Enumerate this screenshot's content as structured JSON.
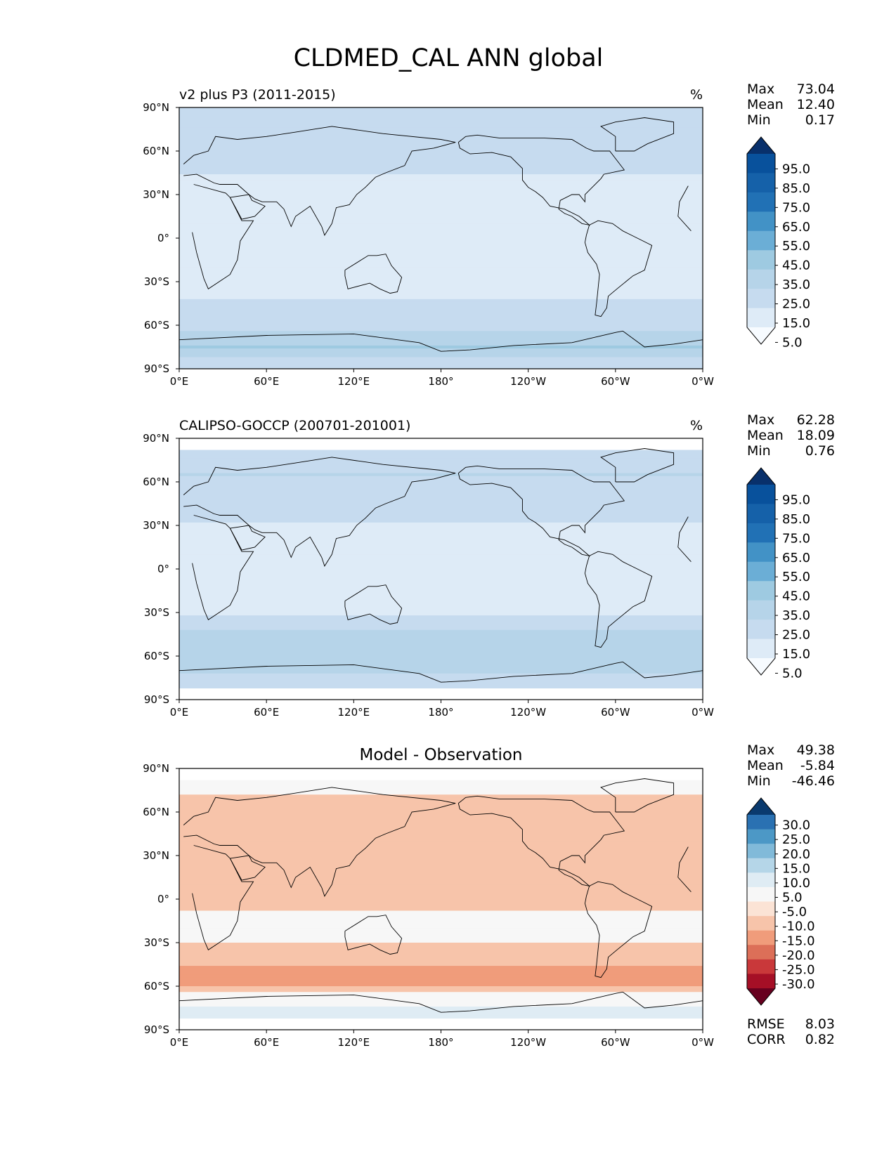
{
  "figure_title": "CLDMED_CAL ANN global",
  "colors": {
    "blues": [
      "#f7fbff",
      "#deebf7",
      "#c6dbef",
      "#b6d4e9",
      "#9ecae1",
      "#6baed6",
      "#4292c6",
      "#2171b5",
      "#1561a9",
      "#08519c",
      "#08306b"
    ],
    "diff": [
      "#67001f",
      "#a50f26",
      "#c9383a",
      "#dc6f58",
      "#f09c7b",
      "#f7c4aa",
      "#fbe3d5",
      "#f7f7f7",
      "#dfecf4",
      "#b5d6e8",
      "#81bad9",
      "#4c98c6",
      "#2a71b2",
      "#0a3a6e"
    ],
    "land_outline": "#000000"
  },
  "panels": [
    {
      "id": "model",
      "left_title": "v2 plus P3 (2011-2015)",
      "center_title": "",
      "right_title": "%",
      "stats": [
        {
          "label": "Max",
          "value": "73.04"
        },
        {
          "label": "Mean",
          "value": "12.40"
        },
        {
          "label": "Min",
          "value": "0.17"
        }
      ],
      "colorbar_labels": [
        "95.0",
        "85.0",
        "75.0",
        "65.0",
        "55.0",
        "45.0",
        "35.0",
        "25.0",
        "15.0",
        "5.0"
      ],
      "footer_stats": []
    },
    {
      "id": "obs",
      "left_title": "CALIPSO-GOCCP (200701-201001)",
      "center_title": "",
      "right_title": "%",
      "stats": [
        {
          "label": "Max",
          "value": "62.28"
        },
        {
          "label": "Mean",
          "value": "18.09"
        },
        {
          "label": "Min",
          "value": "0.76"
        }
      ],
      "colorbar_labels": [
        "95.0",
        "85.0",
        "75.0",
        "65.0",
        "55.0",
        "45.0",
        "35.0",
        "25.0",
        "15.0",
        "5.0"
      ],
      "footer_stats": []
    },
    {
      "id": "diff",
      "left_title": "",
      "center_title": "Model - Observation",
      "right_title": "",
      "stats": [
        {
          "label": "Max",
          "value": "49.38"
        },
        {
          "label": "Mean",
          "value": "-5.84"
        },
        {
          "label": "Min",
          "value": "-46.46"
        }
      ],
      "colorbar_labels": [
        "30.0",
        "25.0",
        "20.0",
        "15.0",
        "10.0",
        "5.0",
        "-5.0",
        "-10.0",
        "-15.0",
        "-20.0",
        "-25.0",
        "-30.0"
      ],
      "footer_stats": [
        {
          "label": "RMSE",
          "value": "8.03"
        },
        {
          "label": "CORR",
          "value": "0.82"
        }
      ]
    }
  ],
  "chart_data": [
    {
      "type": "heatmap",
      "title": "v2 plus P3 (2011-2015)",
      "units": "%",
      "x_ticks": [
        "0°E",
        "60°E",
        "120°E",
        "180°",
        "120°W",
        "60°W",
        "0°W"
      ],
      "y_ticks": [
        "90°N",
        "60°N",
        "30°N",
        "0°",
        "30°S",
        "60°S",
        "90°S"
      ],
      "xlim": [
        0,
        360
      ],
      "ylim": [
        -90,
        90
      ],
      "levels": [
        5,
        15,
        25,
        35,
        45,
        55,
        65,
        75,
        85,
        95
      ],
      "max": 73.04,
      "mean": 12.4,
      "min": 0.17,
      "colormap": "Blues",
      "zonal_mean_profile": [
        {
          "lat": 85,
          "value": 20
        },
        {
          "lat": 65,
          "value": 20
        },
        {
          "lat": 45,
          "value": 15
        },
        {
          "lat": 30,
          "value": 9
        },
        {
          "lat": 10,
          "value": 8
        },
        {
          "lat": 0,
          "value": 6
        },
        {
          "lat": -15,
          "value": 5
        },
        {
          "lat": -30,
          "value": 9
        },
        {
          "lat": -45,
          "value": 17
        },
        {
          "lat": -60,
          "value": 20
        },
        {
          "lat": -75,
          "value": 35
        },
        {
          "lat": -85,
          "value": 20
        }
      ]
    },
    {
      "type": "heatmap",
      "title": "CALIPSO-GOCCP (200701-201001)",
      "units": "%",
      "x_ticks": [
        "0°E",
        "60°E",
        "120°E",
        "180°",
        "120°W",
        "60°W",
        "0°W"
      ],
      "y_ticks": [
        "90°N",
        "60°N",
        "30°N",
        "0°",
        "30°S",
        "60°S",
        "90°S"
      ],
      "xlim": [
        0,
        360
      ],
      "ylim": [
        -90,
        90
      ],
      "data_lat_range": [
        -82,
        82
      ],
      "levels": [
        5,
        15,
        25,
        35,
        45,
        55,
        65,
        75,
        85,
        95
      ],
      "max": 62.28,
      "mean": 18.09,
      "min": 0.76,
      "colormap": "Blues",
      "zonal_mean_profile": [
        {
          "lat": 80,
          "value": 24
        },
        {
          "lat": 65,
          "value": 25
        },
        {
          "lat": 45,
          "value": 22
        },
        {
          "lat": 30,
          "value": 14
        },
        {
          "lat": 10,
          "value": 14
        },
        {
          "lat": 0,
          "value": 12
        },
        {
          "lat": -15,
          "value": 10
        },
        {
          "lat": -30,
          "value": 14
        },
        {
          "lat": -45,
          "value": 27
        },
        {
          "lat": -60,
          "value": 31
        },
        {
          "lat": -75,
          "value": 24
        }
      ]
    },
    {
      "type": "heatmap",
      "title": "Model - Observation",
      "units": "%",
      "x_ticks": [
        "0°E",
        "60°E",
        "120°E",
        "180°",
        "120°W",
        "60°W",
        "0°W"
      ],
      "y_ticks": [
        "90°N",
        "60°N",
        "30°N",
        "0°",
        "30°S",
        "60°S",
        "90°S"
      ],
      "xlim": [
        0,
        360
      ],
      "ylim": [
        -90,
        90
      ],
      "data_lat_range": [
        -82,
        82
      ],
      "levels": [
        -30,
        -25,
        -20,
        -15,
        -10,
        -5,
        5,
        10,
        15,
        20,
        25,
        30
      ],
      "max": 49.38,
      "mean": -5.84,
      "min": -46.46,
      "rmse": 8.03,
      "corr": 0.82,
      "colormap": "RdBu",
      "zonal_mean_profile": [
        {
          "lat": 80,
          "value": -4
        },
        {
          "lat": 65,
          "value": -6
        },
        {
          "lat": 45,
          "value": -7
        },
        {
          "lat": 30,
          "value": -5
        },
        {
          "lat": 10,
          "value": -6
        },
        {
          "lat": 0,
          "value": -6
        },
        {
          "lat": -15,
          "value": -4
        },
        {
          "lat": -30,
          "value": -5
        },
        {
          "lat": -45,
          "value": -10
        },
        {
          "lat": -60,
          "value": -11
        },
        {
          "lat": -75,
          "value": 11
        }
      ]
    }
  ]
}
